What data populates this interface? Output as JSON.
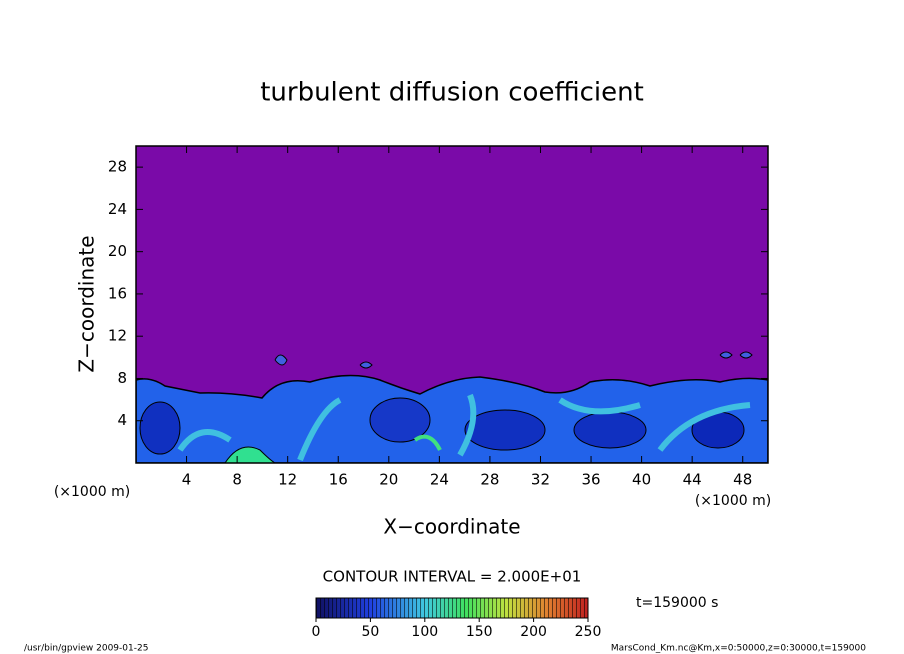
{
  "chart_data": {
    "type": "contour",
    "title": "turbulent diffusion coefficient",
    "xlabel": "X−coordinate",
    "ylabel": "Z−coordinate",
    "axis_unit": "(×1000 m)",
    "xlim": [
      0,
      50
    ],
    "xticks": [
      4,
      8,
      12,
      16,
      20,
      24,
      28,
      32,
      36,
      40,
      44,
      48
    ],
    "ylim": [
      0,
      30
    ],
    "yticks": [
      4,
      8,
      12,
      16,
      20,
      24,
      28
    ],
    "contour_interval": "CONTOUR INTERVAL = 2.000E+01",
    "colorbar": {
      "lim": [
        0,
        250
      ],
      "ticks": [
        0,
        50,
        100,
        150,
        200,
        250
      ]
    },
    "time_label": "t=159000 s",
    "footer_left": "/usr/bin/gpview  2009-01-25",
    "footer_right": "MarsCond_Km.nc@Km,x=0:50000,z=0:30000,t=159000"
  }
}
